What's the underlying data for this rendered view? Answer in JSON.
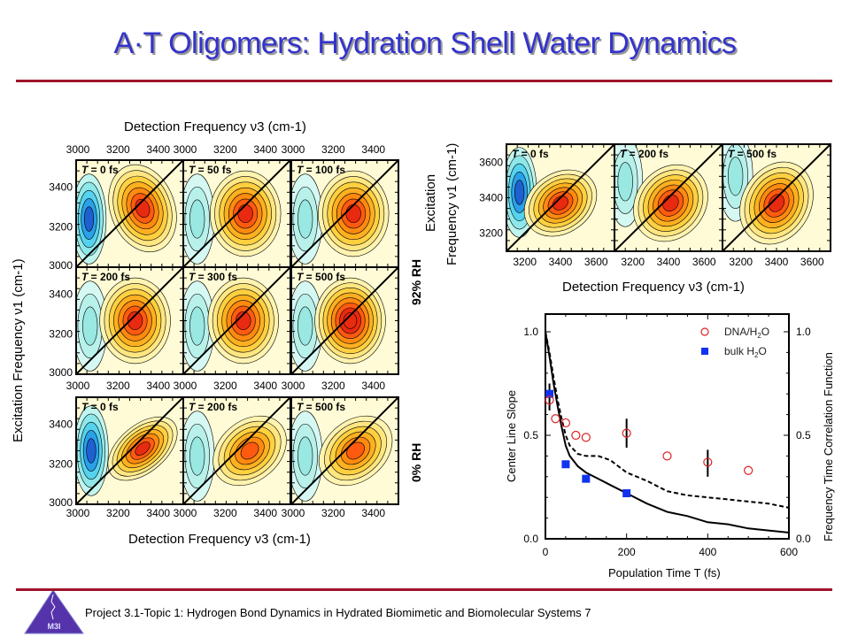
{
  "slide": {
    "title": "A·T Oligomers: Hydration Shell Water Dynamics",
    "footer": "Project 3.1-Topic 1: Hydrogen Bond Dynamics in Hydrated Biomimetic and Biomolecular Systems 7",
    "logo_text": "M3I",
    "accent_color": "#a0142a",
    "title_color": "#3333cc"
  },
  "left_grid": {
    "top_axis_title": "Detection Frequency ν3 (cm-1)",
    "bottom_axis_title": "Detection Frequency ν3 (cm-1)",
    "y_axis_title": "Excitation Frequency ν1 (cm-1)",
    "x_ticks": [
      "3000",
      "3200",
      "3400"
    ],
    "y_ticks": [
      "3000",
      "3200",
      "3400"
    ],
    "groups": [
      {
        "label": "92% RH",
        "panels": [
          {
            "label": "T = 0 fs"
          },
          {
            "label": "T = 50 fs"
          },
          {
            "label": "T = 100 fs"
          },
          {
            "label": "T = 200 fs"
          },
          {
            "label": "T = 300 fs"
          },
          {
            "label": "T = 500 fs"
          }
        ]
      },
      {
        "label": "0% RH",
        "panels": [
          {
            "label": "T = 0 fs"
          },
          {
            "label": "T = 200 fs"
          },
          {
            "label": "T = 500 fs"
          }
        ]
      }
    ]
  },
  "right_top": {
    "x_axis_title": "Detection Frequency ν3 (cm-1)",
    "y_axis_title_line1": "Excitation",
    "y_axis_title_line2": "Frequency ν1 (cm-1)",
    "x_ticks": [
      "3200",
      "3400",
      "3600"
    ],
    "y_ticks": [
      "3200",
      "3400",
      "3600"
    ],
    "panels": [
      {
        "label": "T = 0 fs"
      },
      {
        "label": "T = 200 fs"
      },
      {
        "label": "T = 500 fs"
      }
    ]
  },
  "chart_data": {
    "type": "scatter",
    "title": "",
    "xlabel": "Population Time T (fs)",
    "ylabel": "Center Line Slope",
    "y2label": "Frequency Time Correlation Function",
    "xlim": [
      0,
      600
    ],
    "ylim": [
      0,
      1.1
    ],
    "x_ticks": [
      "0",
      "200",
      "400",
      "600"
    ],
    "y_ticks": [
      "0.0",
      "0.5",
      "1.0"
    ],
    "legend_position": "top-right",
    "series": [
      {
        "name": "DNA/H2O",
        "marker": "open-circle",
        "color": "#dd2222",
        "x": [
          10,
          25,
          50,
          75,
          100,
          200,
          300,
          400,
          500
        ],
        "y": [
          0.67,
          0.58,
          0.56,
          0.5,
          0.49,
          0.51,
          0.4,
          0.37,
          0.33
        ]
      },
      {
        "name": "bulk H2O",
        "marker": "filled-square",
        "color": "#1133ee",
        "x": [
          10,
          50,
          100,
          200
        ],
        "y": [
          0.7,
          0.36,
          0.29,
          0.22
        ]
      }
    ],
    "error_bars": [
      {
        "x": 10,
        "low": 0.62,
        "high": 0.75
      },
      {
        "x": 200,
        "low": 0.44,
        "high": 0.58
      },
      {
        "x": 400,
        "low": 0.3,
        "high": 0.43
      }
    ],
    "curves": [
      {
        "name": "FFCF solid",
        "style": "solid",
        "x": [
          0,
          10,
          20,
          30,
          40,
          50,
          60,
          80,
          100,
          130,
          160,
          200,
          250,
          300,
          350,
          400,
          450,
          500,
          550,
          600
        ],
        "y": [
          1.0,
          0.88,
          0.75,
          0.64,
          0.54,
          0.45,
          0.4,
          0.35,
          0.32,
          0.29,
          0.26,
          0.22,
          0.17,
          0.13,
          0.11,
          0.08,
          0.07,
          0.05,
          0.04,
          0.03
        ]
      },
      {
        "name": "FFCF dashed",
        "style": "dashed",
        "x": [
          0,
          10,
          20,
          30,
          40,
          50,
          60,
          80,
          100,
          130,
          160,
          200,
          250,
          300,
          350,
          400,
          450,
          500,
          550,
          600
        ],
        "y": [
          1.0,
          0.9,
          0.78,
          0.67,
          0.58,
          0.5,
          0.45,
          0.41,
          0.4,
          0.4,
          0.38,
          0.32,
          0.28,
          0.23,
          0.21,
          0.2,
          0.19,
          0.18,
          0.17,
          0.15
        ]
      }
    ]
  }
}
